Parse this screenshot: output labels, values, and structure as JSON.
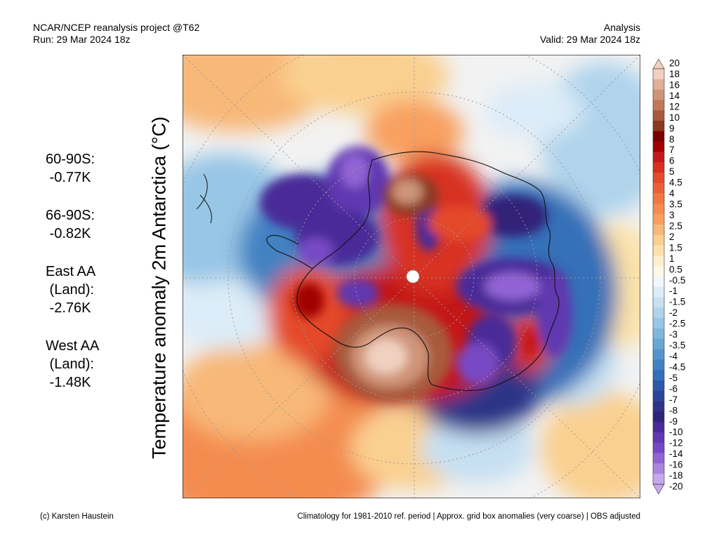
{
  "header": {
    "line1_left": "NCAR/NCEP reanalysis project @T62",
    "line2_left": "Run: 29 Mar 2024 18z",
    "line1_right": "Analysis",
    "line2_right": "Valid: 29 Mar 2024 18z"
  },
  "ylabel": "Temperature anomaly 2m Antarctica (°C)",
  "stats": [
    {
      "lines": [
        "60-90S:",
        " -0.77K"
      ]
    },
    {
      "lines": [
        "66-90S:",
        " -0.82K"
      ]
    },
    {
      "lines": [
        "East AA",
        " (Land):",
        " -2.76K"
      ]
    },
    {
      "lines": [
        "West AA",
        " (Land):",
        " -1.48K"
      ]
    }
  ],
  "colorbar": {
    "labels": [
      "20",
      "18",
      "16",
      "14",
      "12",
      "10",
      "9",
      "8",
      "7",
      "6",
      "5",
      "4.5",
      "4",
      "3.5",
      "3",
      "2.5",
      "2",
      "1.5",
      "1",
      "0.5",
      "-0.5",
      "-1",
      "-1.5",
      "-2",
      "-2.5",
      "-3",
      "-3.5",
      "-4",
      "-4.5",
      "-5",
      "-6",
      "-7",
      "-8",
      "-9",
      "-10",
      "-12",
      "-14",
      "-16",
      "-18",
      "-20"
    ],
    "colors": [
      "#f0d0c0",
      "#e0b098",
      "#d09478",
      "#c07858",
      "#a85a3c",
      "#8a3a20",
      "#7a0000",
      "#a00000",
      "#c41818",
      "#d83020",
      "#e44a2c",
      "#ec6038",
      "#f07844",
      "#f48c50",
      "#f8a060",
      "#f8b878",
      "#fad090",
      "#fce2aa",
      "#fef0cc",
      "#fdf8ea",
      "#f0f6fc",
      "#dcecf8",
      "#c6e0f2",
      "#b0d4ec",
      "#98c6e6",
      "#80b6de",
      "#68a6d6",
      "#5494cc",
      "#4282c2",
      "#3470b8",
      "#2a5aa8",
      "#2a4698",
      "#2c3488",
      "#302478",
      "#4a2a98",
      "#6038b0",
      "#7848c4",
      "#9264d4",
      "#ac84e0",
      "#c8a8ec"
    ]
  },
  "footer": {
    "left": "(c) Karsten Haustein",
    "right": "Climatology for 1981-2010 ref. period | Approx. grid box anomalies (very coarse) | OBS adjusted"
  }
}
